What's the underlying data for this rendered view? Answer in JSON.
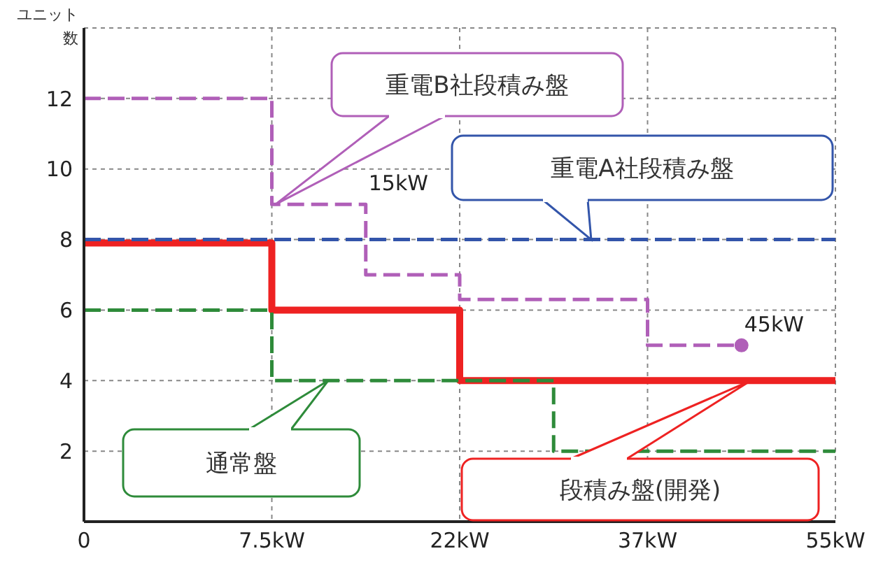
{
  "chart_data": {
    "type": "step",
    "ylabel": "ユニット数",
    "categories": [
      "0",
      null,
      "7.5kW",
      null,
      "22kW",
      null,
      "37kW",
      null,
      "55kW"
    ],
    "ylim": [
      0,
      14
    ],
    "yticks": [
      2,
      4,
      6,
      8,
      10,
      12
    ],
    "grid": true,
    "series": [
      {
        "name": "段積み盤(開発)",
        "color": "#ee2222",
        "values": [
          7.9,
          7.9,
          6,
          6,
          4,
          4,
          4,
          4,
          4
        ],
        "line_style": "solid"
      },
      {
        "name": "重電A社段積み盤",
        "color": "#3355aa",
        "values": [
          8,
          8,
          8,
          8,
          8,
          8,
          8,
          8,
          8
        ],
        "line_style": "dashed"
      },
      {
        "name": "重電B社段積み盤",
        "color": "#b05fb8",
        "values": [
          12,
          12,
          9,
          7,
          6.3,
          6.3,
          5,
          5,
          null
        ],
        "line_style": "dashed"
      },
      {
        "name": "通常盤",
        "color": "#2e8b3a",
        "values": [
          6,
          6,
          4,
          4,
          4,
          2,
          2,
          2,
          2
        ],
        "line_style": "dashed"
      },
      {
        "type": "scatter",
        "color": "#b05fb8",
        "values": [
          null,
          null,
          null,
          null,
          null,
          null,
          null,
          5,
          null
        ],
        "marker": "circle"
      }
    ],
    "annotations": [
      "15kW",
      "45kW"
    ]
  }
}
